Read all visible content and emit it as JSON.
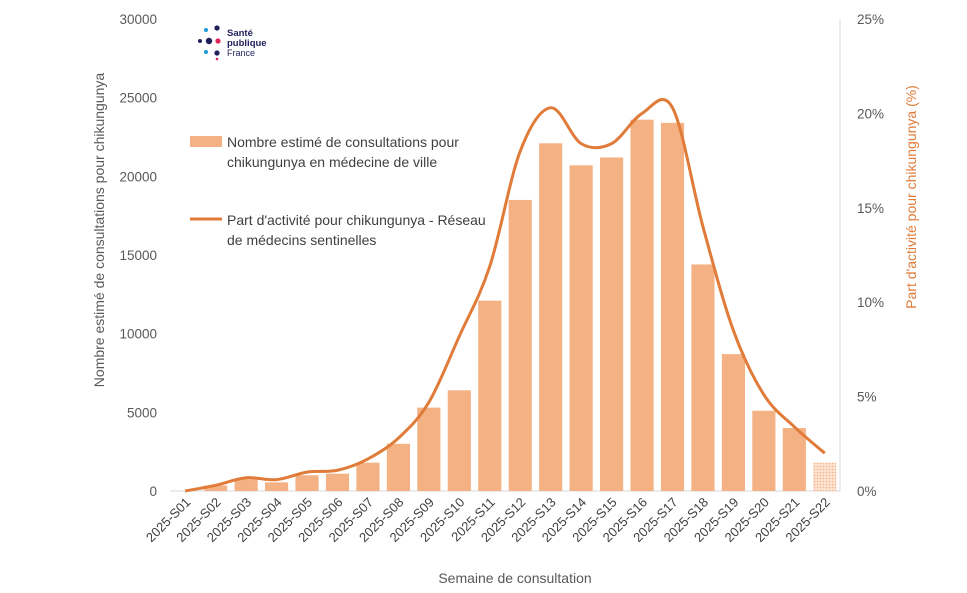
{
  "logo": {
    "line1": "Santé",
    "line2": "publique",
    "line3": "France"
  },
  "chart_data": {
    "type": "bar",
    "categories": [
      "2025-S01",
      "2025-S02",
      "2025-S03",
      "2025-S04",
      "2025-S05",
      "2025-S06",
      "2025-S07",
      "2025-S08",
      "2025-S09",
      "2025-S10",
      "2025-S11",
      "2025-S12",
      "2025-S13",
      "2025-S14",
      "2025-S15",
      "2025-S16",
      "2025-S17",
      "2025-S18",
      "2025-S19",
      "2025-S20",
      "2025-S21",
      "2025-S22"
    ],
    "series": [
      {
        "name": "Nombre estimé de consultations pour chikungunya en médecine de ville",
        "type": "bar",
        "axis": "left",
        "color": "#f4b183",
        "values": [
          0,
          350,
          750,
          550,
          1000,
          1100,
          1800,
          3000,
          5300,
          6400,
          12100,
          18500,
          22100,
          20700,
          21200,
          23600,
          23400,
          14400,
          8700,
          5100,
          4000,
          1800
        ],
        "partial_last": true
      },
      {
        "name": "Part d'activité pour chikungunya - Réseau de médecins sentinelles",
        "type": "line",
        "axis": "right",
        "color": "#e07b39",
        "values": [
          0,
          0.3,
          0.7,
          0.6,
          1.0,
          1.1,
          1.7,
          2.8,
          4.7,
          8.2,
          11.9,
          18.0,
          20.3,
          18.4,
          18.4,
          20.0,
          20.3,
          14.0,
          8.5,
          5.1,
          3.4,
          2.0
        ]
      }
    ],
    "xlabel": "Semaine de consultation",
    "ylabel": "Nombre estimé de consultations pour chikungunya",
    "ylabel_right": "Part d'activité pour chikungunya  (%)",
    "ylim": [
      0,
      30000
    ],
    "ylim_right": [
      0,
      25
    ],
    "yticks": [
      "0",
      "5000",
      "10000",
      "15000",
      "20000",
      "25000",
      "30000"
    ],
    "yticks_right": [
      "0%",
      "5%",
      "10%",
      "15%",
      "20%",
      "25%"
    ],
    "legend_position": "top-left",
    "grid": false
  }
}
